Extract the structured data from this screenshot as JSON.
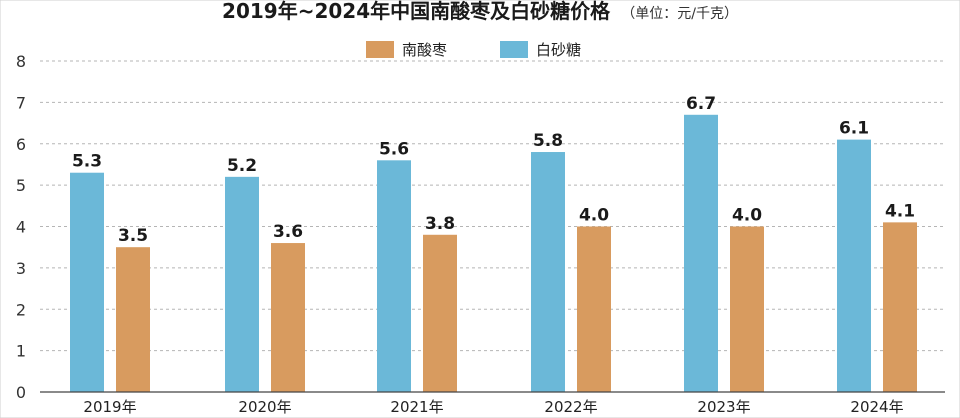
{
  "chart_data": {
    "type": "bar",
    "title": "2019年~2024年中国南酸枣及白砂糖价格",
    "subtitle": "（单位：元/千克）",
    "categories": [
      "2019年",
      "2020年",
      "2021年",
      "2022年",
      "2023年",
      "2024年"
    ],
    "series": [
      {
        "name": "南酸枣",
        "values": [
          3.5,
          3.6,
          3.8,
          4.0,
          4.0,
          4.1
        ],
        "color": "#D89B5F"
      },
      {
        "name": "白砂糖",
        "values": [
          5.3,
          5.2,
          5.6,
          5.8,
          6.7,
          6.1
        ],
        "color": "#6BB8D8"
      }
    ],
    "data_labels": {
      "南酸枣": [
        "3.5",
        "3.6",
        "3.8",
        "4.0",
        "4.0",
        "4.1"
      ],
      "白砂糖": [
        "5.3",
        "5.2",
        "5.6",
        "5.8",
        "6.7",
        "6.1"
      ]
    },
    "yticks": [
      "0",
      "1",
      "2",
      "3",
      "4",
      "5",
      "6",
      "7",
      "8"
    ],
    "ylim": [
      0,
      8
    ],
    "grid": true,
    "legend_position": "top-center"
  }
}
